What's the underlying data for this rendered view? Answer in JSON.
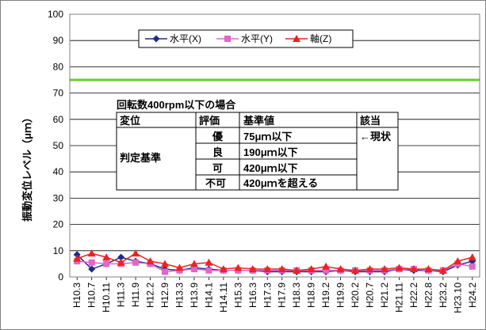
{
  "chart_data": {
    "type": "line",
    "title": "",
    "xlabel": "",
    "ylabel": "振動変位レベル（μｍ）",
    "ylim": [
      0,
      100
    ],
    "yticks": [
      0,
      10,
      20,
      30,
      40,
      50,
      60,
      70,
      80,
      90,
      100
    ],
    "grid": true,
    "legend_position": "top",
    "categories": [
      "H10.3",
      "H10.7",
      "H10.11",
      "H11.3",
      "H11.9",
      "H12.2",
      "H12.9",
      "H13.3",
      "H13.9",
      "H14.1",
      "H14.11",
      "H15.3",
      "H16.3",
      "H17.3",
      "H17.9",
      "H18.3",
      "H18.9",
      "H19.2",
      "H19.9",
      "H20.2",
      "H20.7",
      "H21.2",
      "H21.11",
      "H22.2",
      "H22.8",
      "H23.2",
      "H23.10",
      "H24.2"
    ],
    "series": [
      {
        "name": "水平(X)",
        "color": "#1f2a8c",
        "marker": "diamond",
        "values": [
          8.5,
          3,
          5,
          7.5,
          6,
          5,
          3,
          2.5,
          3.5,
          3,
          2.5,
          2.5,
          2.5,
          2,
          2,
          2,
          2,
          2,
          2.5,
          2,
          2,
          2,
          3,
          2.5,
          2.5,
          2,
          4.5,
          6
        ]
      },
      {
        "name": "水平(Y)",
        "color": "#e066c8",
        "marker": "square",
        "values": [
          6,
          5.5,
          5,
          5,
          5.5,
          5,
          2,
          2.5,
          3,
          2.5,
          2.5,
          2.5,
          2.5,
          2.5,
          2.5,
          2.5,
          2.5,
          2.5,
          2.5,
          2.5,
          2.5,
          2.5,
          3,
          3,
          2.5,
          2.5,
          5,
          4
        ]
      },
      {
        "name": "軸(Z)",
        "color": "#ee2222",
        "marker": "triangle",
        "values": [
          7,
          9,
          7.5,
          5.5,
          9,
          6,
          5,
          3.5,
          5,
          5.5,
          3,
          3.5,
          3,
          3,
          3,
          2.5,
          3,
          4,
          3,
          2.5,
          3,
          3,
          3.5,
          3,
          3,
          2.5,
          6,
          7.5
        ]
      }
    ],
    "reference_line": {
      "value": 75,
      "color": "#66cc33"
    }
  },
  "table": {
    "title": "回転数400rpm以下の場合",
    "headers": [
      "変位",
      "評価",
      "基準値",
      "該当"
    ],
    "row_label": "判定基準",
    "rows": [
      {
        "grade": "優",
        "criterion": "75μｍ以下",
        "applicable": "←現状"
      },
      {
        "grade": "良",
        "criterion": "190μｍ以下",
        "applicable": ""
      },
      {
        "grade": "可",
        "criterion": "420μｍ以下",
        "applicable": ""
      },
      {
        "grade": "不可",
        "criterion": "420μｍを超える",
        "applicable": ""
      }
    ]
  }
}
